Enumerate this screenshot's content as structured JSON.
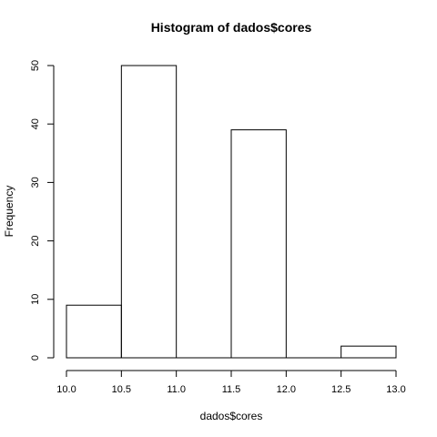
{
  "chart_data": {
    "type": "bar",
    "title": "Histogram of dados$cores",
    "xlabel": "dados$cores",
    "ylabel": "Frequency",
    "bins": [
      {
        "start": 10.0,
        "end": 10.5,
        "count": 9
      },
      {
        "start": 10.5,
        "end": 11.0,
        "count": 50
      },
      {
        "start": 11.0,
        "end": 11.5,
        "count": 0
      },
      {
        "start": 11.5,
        "end": 12.0,
        "count": 39
      },
      {
        "start": 12.0,
        "end": 12.5,
        "count": 0
      },
      {
        "start": 12.5,
        "end": 13.0,
        "count": 2
      }
    ],
    "xlim": [
      10.0,
      13.0
    ],
    "ylim": [
      0,
      50
    ],
    "x_ticks": [
      "10.0",
      "10.5",
      "11.0",
      "11.5",
      "12.0",
      "12.5",
      "13.0"
    ],
    "y_ticks": [
      "0",
      "10",
      "20",
      "30",
      "40",
      "50"
    ],
    "grid": false,
    "legend": "none"
  }
}
